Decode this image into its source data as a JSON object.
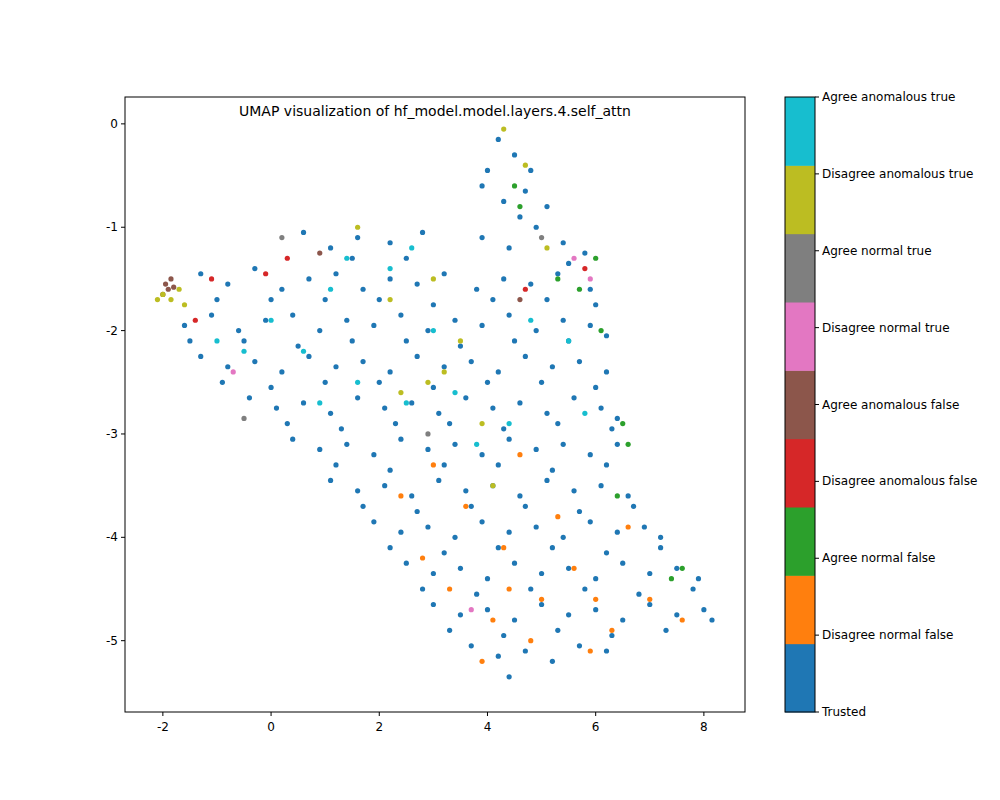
{
  "chart_data": {
    "type": "scatter",
    "title": "UMAP visualization of hf_model.model.layers.4.self_attn",
    "xlim": [
      -2.7,
      8.76
    ],
    "ylim": [
      -5.69,
      0.26
    ],
    "xticks": [
      -2,
      0,
      2,
      4,
      6,
      8
    ],
    "yticks": [
      -5,
      -4,
      -3,
      -2,
      -1,
      0
    ],
    "grid": false,
    "legend": "right",
    "marker": "circle",
    "series": [
      {
        "name": "Trusted",
        "color": "#1f77b4",
        "x": [
          4.2,
          4.5,
          4.8,
          3.9,
          4.3,
          4.7,
          5.1,
          0.6,
          1.1,
          1.6,
          2.2,
          2.8,
          3.9,
          4.4,
          4.9,
          5.4,
          5.8,
          -1.3,
          -0.8,
          -0.3,
          0.2,
          0.7,
          1.2,
          1.7,
          2.2,
          2.7,
          3.2,
          3.8,
          4.3,
          4.8,
          5.3,
          5.9,
          -1.6,
          -1.1,
          -0.6,
          -0.1,
          0.4,
          0.9,
          1.4,
          1.9,
          2.4,
          2.9,
          3.4,
          3.9,
          4.4,
          4.9,
          5.4,
          5.9,
          6.2,
          -1.3,
          -0.8,
          -0.3,
          0.2,
          0.7,
          1.2,
          1.7,
          2.2,
          2.7,
          3.2,
          3.7,
          4.2,
          4.7,
          5.2,
          5.7,
          6.2,
          -0.4,
          0.1,
          0.6,
          1.1,
          1.6,
          2.1,
          2.6,
          3.1,
          3.6,
          4.1,
          4.6,
          5.1,
          5.6,
          6.1,
          6.4,
          0.4,
          0.9,
          1.4,
          1.9,
          2.4,
          2.9,
          3.4,
          3.9,
          4.4,
          4.9,
          5.4,
          5.9,
          6.4,
          1.1,
          1.6,
          2.1,
          2.6,
          3.1,
          3.6,
          4.1,
          4.6,
          5.1,
          5.6,
          6.1,
          6.6,
          1.9,
          2.4,
          2.9,
          3.4,
          3.9,
          4.4,
          4.9,
          5.4,
          5.9,
          6.4,
          6.9,
          7.2,
          2.5,
          3.0,
          3.5,
          4.0,
          4.5,
          5.0,
          5.5,
          6.0,
          6.5,
          7.0,
          7.5,
          7.9,
          3.0,
          3.5,
          4.0,
          4.5,
          5.0,
          5.5,
          6.0,
          6.5,
          7.0,
          7.5,
          8.0,
          8.15,
          3.7,
          4.2,
          4.7,
          5.2,
          5.7,
          6.2,
          4.4,
          -1.0,
          0.0,
          1.0,
          2.0,
          3.0,
          4.1,
          5.1,
          6.0,
          -1.5,
          -0.5,
          0.5,
          1.5,
          2.5,
          3.5,
          4.5,
          5.5,
          -0.9,
          0.0,
          1.0,
          2.0,
          3.0,
          4.0,
          5.0,
          6.0,
          0.3,
          1.3,
          2.3,
          3.3,
          4.3,
          5.3,
          6.3,
          1.2,
          2.2,
          3.2,
          4.2,
          5.2,
          6.2,
          1.7,
          2.7,
          3.7,
          4.7,
          5.7,
          6.7,
          2.2,
          3.2,
          4.2,
          5.2,
          6.2,
          7.2,
          2.8,
          3.8,
          4.8,
          5.8,
          6.8,
          7.8,
          3.3,
          4.3,
          5.3,
          6.3,
          7.3,
          4.0,
          4.6,
          5.5,
          2.5,
          1.5
        ],
        "values": [
          -0.15,
          -0.3,
          -0.45,
          -0.6,
          -0.75,
          -0.65,
          -0.8,
          -1.05,
          -1.2,
          -1.1,
          -1.15,
          -1.05,
          -1.1,
          -1.2,
          -1.0,
          -1.15,
          -1.25,
          -1.45,
          -1.55,
          -1.4,
          -1.6,
          -1.5,
          -1.45,
          -1.6,
          -1.5,
          -1.55,
          -1.45,
          -1.6,
          -1.5,
          -1.55,
          -1.45,
          -1.6,
          -1.95,
          -1.85,
          -2.0,
          -1.9,
          -1.85,
          -2.0,
          -1.9,
          -1.95,
          -1.85,
          -2.0,
          -1.9,
          -1.95,
          -1.85,
          -2.0,
          -1.9,
          -1.95,
          -2.05,
          -2.25,
          -2.35,
          -2.3,
          -2.4,
          -2.25,
          -2.35,
          -2.3,
          -2.4,
          -2.25,
          -2.35,
          -2.3,
          -2.4,
          -2.25,
          -2.35,
          -2.3,
          -2.4,
          -2.65,
          -2.75,
          -2.7,
          -2.8,
          -2.65,
          -2.75,
          -2.7,
          -2.8,
          -2.65,
          -2.75,
          -2.7,
          -2.8,
          -2.65,
          -2.75,
          -2.85,
          -3.05,
          -3.15,
          -3.1,
          -3.2,
          -3.05,
          -3.15,
          -3.1,
          -3.2,
          -3.05,
          -3.15,
          -3.1,
          -3.2,
          -3.1,
          -3.45,
          -3.55,
          -3.5,
          -3.6,
          -3.45,
          -3.55,
          -3.5,
          -3.6,
          -3.45,
          -3.55,
          -3.5,
          -3.6,
          -3.85,
          -3.95,
          -3.9,
          -4.0,
          -3.85,
          -3.95,
          -3.9,
          -4.0,
          -3.85,
          -3.95,
          -3.9,
          -4.0,
          -4.25,
          -4.35,
          -4.3,
          -4.4,
          -4.25,
          -4.35,
          -4.3,
          -4.4,
          -4.25,
          -4.35,
          -4.3,
          -4.4,
          -4.65,
          -4.75,
          -4.7,
          -4.8,
          -4.65,
          -4.75,
          -4.7,
          -4.8,
          -4.65,
          -4.75,
          -4.7,
          -4.8,
          -5.05,
          -5.15,
          -5.1,
          -5.2,
          -5.05,
          -5.1,
          -5.35,
          -1.7,
          -1.7,
          -1.7,
          -1.7,
          -1.75,
          -1.7,
          -1.7,
          -1.75,
          -2.1,
          -2.1,
          -2.15,
          -2.1,
          -2.1,
          -2.15,
          -2.1,
          -2.1,
          -2.5,
          -2.55,
          -2.5,
          -2.5,
          -2.55,
          -2.5,
          -2.5,
          -2.55,
          -2.9,
          -2.95,
          -2.9,
          -2.9,
          -2.95,
          -2.9,
          -2.95,
          -3.3,
          -3.35,
          -3.3,
          -3.3,
          -3.35,
          -3.3,
          -3.7,
          -3.75,
          -3.7,
          -3.7,
          -3.75,
          -3.7,
          -4.1,
          -4.15,
          -4.1,
          -4.1,
          -4.15,
          -4.1,
          -4.5,
          -4.55,
          -4.5,
          -4.5,
          -4.55,
          -4.5,
          -4.9,
          -4.95,
          -4.9,
          -4.95,
          -4.9,
          -0.45,
          -0.9,
          -1.35,
          -1.3,
          -1.3
        ]
      },
      {
        "name": "Disagree normal false",
        "color": "#ff7f0e",
        "x": [
          3.6,
          4.3,
          5.0,
          3.3,
          4.8,
          6.3,
          7.0,
          5.6,
          4.1,
          2.8,
          6.6,
          4.6,
          7.6,
          5.9,
          3.9,
          2.4,
          5.3,
          6.0,
          4.4,
          3.0
        ],
        "values": [
          -3.7,
          -4.1,
          -4.6,
          -4.5,
          -5.0,
          -4.9,
          -4.6,
          -4.3,
          -4.8,
          -4.2,
          -3.9,
          -3.2,
          -4.8,
          -5.1,
          -5.2,
          -3.6,
          -3.8,
          -4.6,
          -4.5,
          -3.3
        ]
      },
      {
        "name": "Agree normal false",
        "color": "#2ca02c",
        "x": [
          5.7,
          6.1,
          6.5,
          6.4,
          7.6,
          7.4,
          4.6,
          5.3,
          6.0,
          6.6,
          4.5
        ],
        "values": [
          -1.6,
          -2.0,
          -2.9,
          -3.6,
          -4.3,
          -4.4,
          -0.8,
          -1.5,
          -1.3,
          -3.1,
          -0.6
        ]
      },
      {
        "name": "Disagree anomalous false",
        "color": "#d62728",
        "x": [
          -1.1,
          -0.1,
          0.3,
          4.7,
          5.8,
          -1.4
        ],
        "values": [
          -1.5,
          -1.45,
          -1.3,
          -1.6,
          -1.4,
          -1.9
        ]
      },
      {
        "name": "Agree anomalous false",
        "color": "#8c564b",
        "x": [
          -1.95,
          -1.9,
          -1.85,
          -2.0,
          -1.8,
          0.9,
          4.6
        ],
        "values": [
          -1.55,
          -1.6,
          -1.5,
          -1.65,
          -1.58,
          -1.25,
          -1.7
        ]
      },
      {
        "name": "Disagree normal true",
        "color": "#e377c2",
        "x": [
          -0.7,
          5.9,
          3.7,
          5.6
        ],
        "values": [
          -2.4,
          -1.5,
          -4.7,
          -1.3
        ]
      },
      {
        "name": "Agree normal true",
        "color": "#7f7f7f",
        "x": [
          -0.5,
          5.0,
          2.9,
          0.2
        ],
        "values": [
          -2.85,
          -1.1,
          -3.0,
          -1.1
        ]
      },
      {
        "name": "Disagree anomalous true",
        "color": "#bcbd22",
        "x": [
          -2.0,
          -1.85,
          -1.7,
          -1.6,
          -2.1,
          2.4,
          2.9,
          3.2,
          3.5,
          4.3,
          4.7,
          1.6,
          2.2,
          3.0,
          5.1,
          3.9,
          4.1
        ],
        "values": [
          -1.65,
          -1.7,
          -1.6,
          -1.75,
          -1.7,
          -2.6,
          -2.5,
          -2.4,
          -2.1,
          -0.05,
          -0.4,
          -1.0,
          -1.7,
          -1.5,
          -1.2,
          -2.9,
          -3.5
        ]
      },
      {
        "name": "Agree anomalous true",
        "color": "#17becf",
        "x": [
          0.0,
          0.6,
          1.1,
          1.6,
          2.5,
          2.2,
          3.0,
          3.4,
          0.9,
          -0.5,
          4.8,
          5.5,
          4.4,
          5.8,
          3.8,
          -1.0,
          2.6,
          1.4
        ],
        "values": [
          -1.9,
          -2.2,
          -1.6,
          -2.5,
          -2.7,
          -1.4,
          -2.0,
          -2.6,
          -2.7,
          -2.2,
          -1.9,
          -2.1,
          -2.9,
          -2.8,
          -3.1,
          -2.1,
          -1.2,
          -1.3
        ]
      }
    ]
  }
}
